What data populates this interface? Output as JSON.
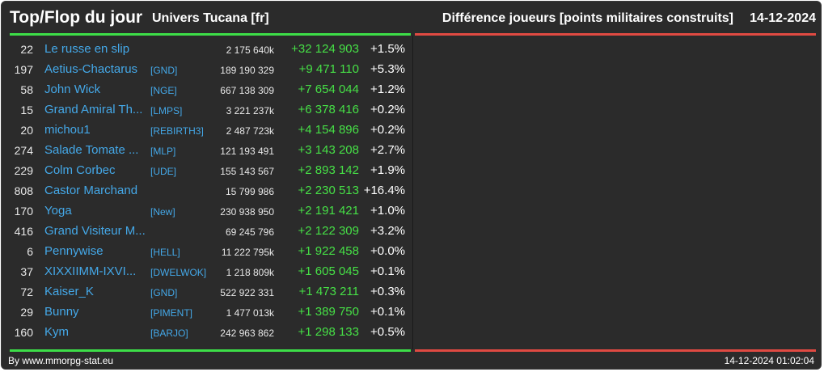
{
  "header": {
    "title": "Top/Flop du jour",
    "universe": "Univers Tucana [fr]",
    "metric": "Différence joueurs [points militaires construits]",
    "date": "14-12-2024"
  },
  "colors": {
    "top_line": "#3dde48",
    "flop_line": "#e04a42",
    "player_link": "#44a8e8",
    "positive_diff": "#46e046",
    "background": "#2b2b2b"
  },
  "top_rows": [
    {
      "rank": "22",
      "name": "Le russe en slip",
      "alliance": "",
      "points": "2 175 640k",
      "diff": "+32 124 903",
      "pct": "+1.5%"
    },
    {
      "rank": "197",
      "name": "Aetius-Chactarus",
      "alliance": "[GND]",
      "points": "189 190 329",
      "diff": "+9 471 110",
      "pct": "+5.3%"
    },
    {
      "rank": "58",
      "name": "John Wick",
      "alliance": "[NGE]",
      "points": "667 138 309",
      "diff": "+7 654 044",
      "pct": "+1.2%"
    },
    {
      "rank": "15",
      "name": "Grand Amiral Th...",
      "alliance": "[LMPS]",
      "points": "3 221 237k",
      "diff": "+6 378 416",
      "pct": "+0.2%"
    },
    {
      "rank": "20",
      "name": "michou1",
      "alliance": "[REBIRTH3]",
      "points": "2 487 723k",
      "diff": "+4 154 896",
      "pct": "+0.2%"
    },
    {
      "rank": "274",
      "name": "Salade Tomate ...",
      "alliance": "[MLP]",
      "points": "121 193 491",
      "diff": "+3 143 208",
      "pct": "+2.7%"
    },
    {
      "rank": "229",
      "name": "Colm Corbec",
      "alliance": "[UDE]",
      "points": "155 143 567",
      "diff": "+2 893 142",
      "pct": "+1.9%"
    },
    {
      "rank": "808",
      "name": "Castor Marchand",
      "alliance": "",
      "points": "15 799 986",
      "diff": "+2 230 513",
      "pct": "+16.4%"
    },
    {
      "rank": "170",
      "name": "Yoga",
      "alliance": "[New]",
      "points": "230 938 950",
      "diff": "+2 191 421",
      "pct": "+1.0%"
    },
    {
      "rank": "416",
      "name": "Grand Visiteur M...",
      "alliance": "",
      "points": "69 245 796",
      "diff": "+2 122 309",
      "pct": "+3.2%"
    },
    {
      "rank": "6",
      "name": "Pennywise",
      "alliance": "[HELL]",
      "points": "11 222 795k",
      "diff": "+1 922 458",
      "pct": "+0.0%"
    },
    {
      "rank": "37",
      "name": "XIXXIIMM-IXVI...",
      "alliance": "[DWELWOK]",
      "points": "1 218 809k",
      "diff": "+1 605 045",
      "pct": "+0.1%"
    },
    {
      "rank": "72",
      "name": "Kaiser_K",
      "alliance": "[GND]",
      "points": "522 922 331",
      "diff": "+1 473 211",
      "pct": "+0.3%"
    },
    {
      "rank": "29",
      "name": "Bunny",
      "alliance": "[PIMENT]",
      "points": "1 477 013k",
      "diff": "+1 389 750",
      "pct": "+0.1%"
    },
    {
      "rank": "160",
      "name": "Kym",
      "alliance": "[BARJO]",
      "points": "242 963 862",
      "diff": "+1 298 133",
      "pct": "+0.5%"
    }
  ],
  "flop_rows": [],
  "footer": {
    "credit": "By www.mmorpg-stat.eu",
    "timestamp": "14-12-2024 01:02:04"
  }
}
